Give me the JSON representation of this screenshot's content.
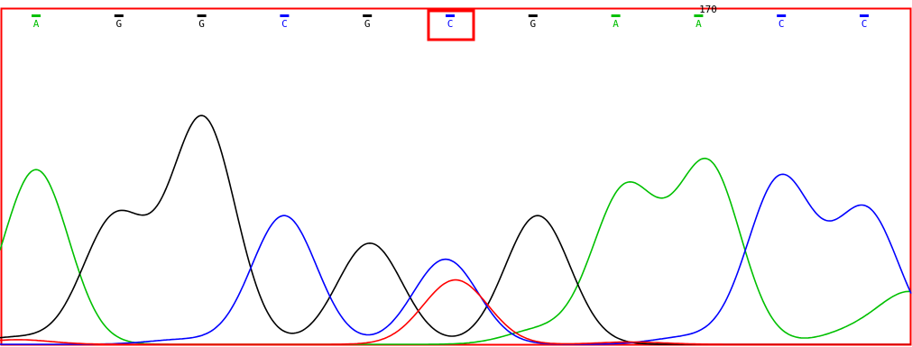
{
  "colors": {
    "frame": "#ff0000",
    "highlight": "#ff0000",
    "A": "#00c000",
    "G": "#000000",
    "C": "#0000ff",
    "T": "#ff0000"
  },
  "chart_data": {
    "type": "line",
    "title": "",
    "xlabel": "",
    "ylabel": "",
    "grid": false,
    "position_marker": "170",
    "highlighted_base_index": 5,
    "base_calls": [
      "A",
      "G",
      "G",
      "C",
      "G",
      "C",
      "G",
      "A",
      "A",
      "C",
      "C"
    ],
    "series": [
      {
        "channel": "A",
        "color": "#00c000",
        "peaks": [
          {
            "x": 40,
            "h": 0.76
          },
          {
            "x": 596,
            "h": 0.06
          },
          {
            "x": 693,
            "h": 0.67
          },
          {
            "x": 785,
            "h": 0.78
          },
          {
            "x": 945,
            "h": 0.05
          },
          {
            "x": 1011,
            "h": 0.22
          }
        ]
      },
      {
        "channel": "G",
        "color": "#000000",
        "peaks": [
          {
            "x": 15,
            "h": 0.03
          },
          {
            "x": 128,
            "h": 0.55
          },
          {
            "x": 225,
            "h": 0.98
          },
          {
            "x": 410,
            "h": 0.44
          },
          {
            "x": 596,
            "h": 0.56
          }
        ]
      },
      {
        "channel": "C",
        "color": "#0000ff",
        "peaks": [
          {
            "x": 200,
            "h": 0.02
          },
          {
            "x": 315,
            "h": 0.56
          },
          {
            "x": 494,
            "h": 0.37
          },
          {
            "x": 760,
            "h": 0.03
          },
          {
            "x": 865,
            "h": 0.72
          },
          {
            "x": 960,
            "h": 0.58
          }
        ]
      },
      {
        "channel": "T",
        "color": "#ff0000",
        "peaks": [
          {
            "x": 20,
            "h": 0.02
          },
          {
            "x": 505,
            "h": 0.28
          },
          {
            "x": 700,
            "h": 0.01
          }
        ]
      }
    ]
  }
}
